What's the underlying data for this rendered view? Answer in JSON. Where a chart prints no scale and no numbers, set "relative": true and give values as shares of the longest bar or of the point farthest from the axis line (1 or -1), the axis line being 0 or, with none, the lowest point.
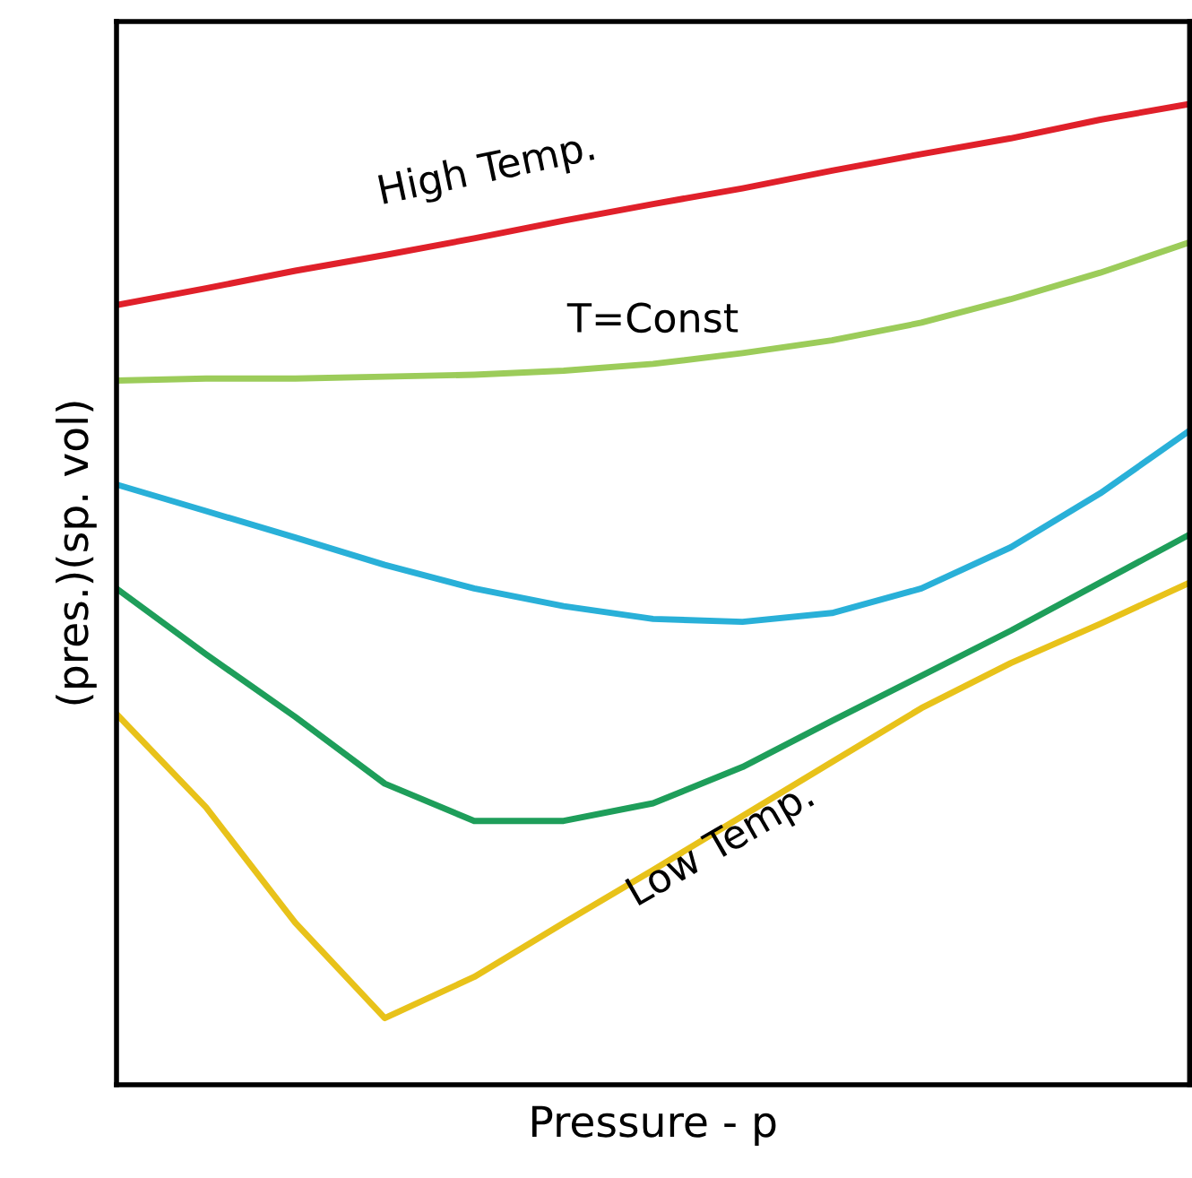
{
  "chart_data": {
    "type": "line",
    "relative": true,
    "xlabel": "Pressure - p",
    "ylabel": "(pres.)(sp. vol)",
    "categories": [
      null,
      null,
      null,
      null,
      null,
      null,
      null,
      null,
      null,
      null,
      null,
      null,
      null
    ],
    "series": [
      {
        "color": "#e0202a",
        "values": [
          0.795,
          0.812,
          0.83,
          0.846,
          0.863,
          0.881,
          0.898,
          0.914,
          0.932,
          0.949,
          0.965,
          0.984,
          1.0
        ]
      },
      {
        "color": "#9ccc5a",
        "values": [
          0.718,
          0.72,
          0.72,
          0.722,
          0.724,
          0.728,
          0.735,
          0.746,
          0.759,
          0.777,
          0.801,
          0.828,
          0.859
        ]
      },
      {
        "color": "#29b0d8",
        "values": [
          0.612,
          0.585,
          0.558,
          0.53,
          0.506,
          0.488,
          0.475,
          0.472,
          0.481,
          0.506,
          0.548,
          0.603,
          0.667
        ]
      },
      {
        "color": "#1e9e5a",
        "values": [
          0.506,
          0.439,
          0.375,
          0.307,
          0.269,
          0.269,
          0.287,
          0.324,
          0.371,
          0.417,
          0.463,
          0.512,
          0.561
        ]
      },
      {
        "color": "#e8c21a",
        "values": [
          0.378,
          0.283,
          0.165,
          0.068,
          0.11,
          0.165,
          0.219,
          0.274,
          0.329,
          0.384,
          0.43,
          0.47,
          0.512
        ]
      }
    ],
    "annotations": [
      "High Temp.",
      "T=Const",
      "Low Temp."
    ],
    "legend": false,
    "marker": "none",
    "line_style": "solid"
  }
}
